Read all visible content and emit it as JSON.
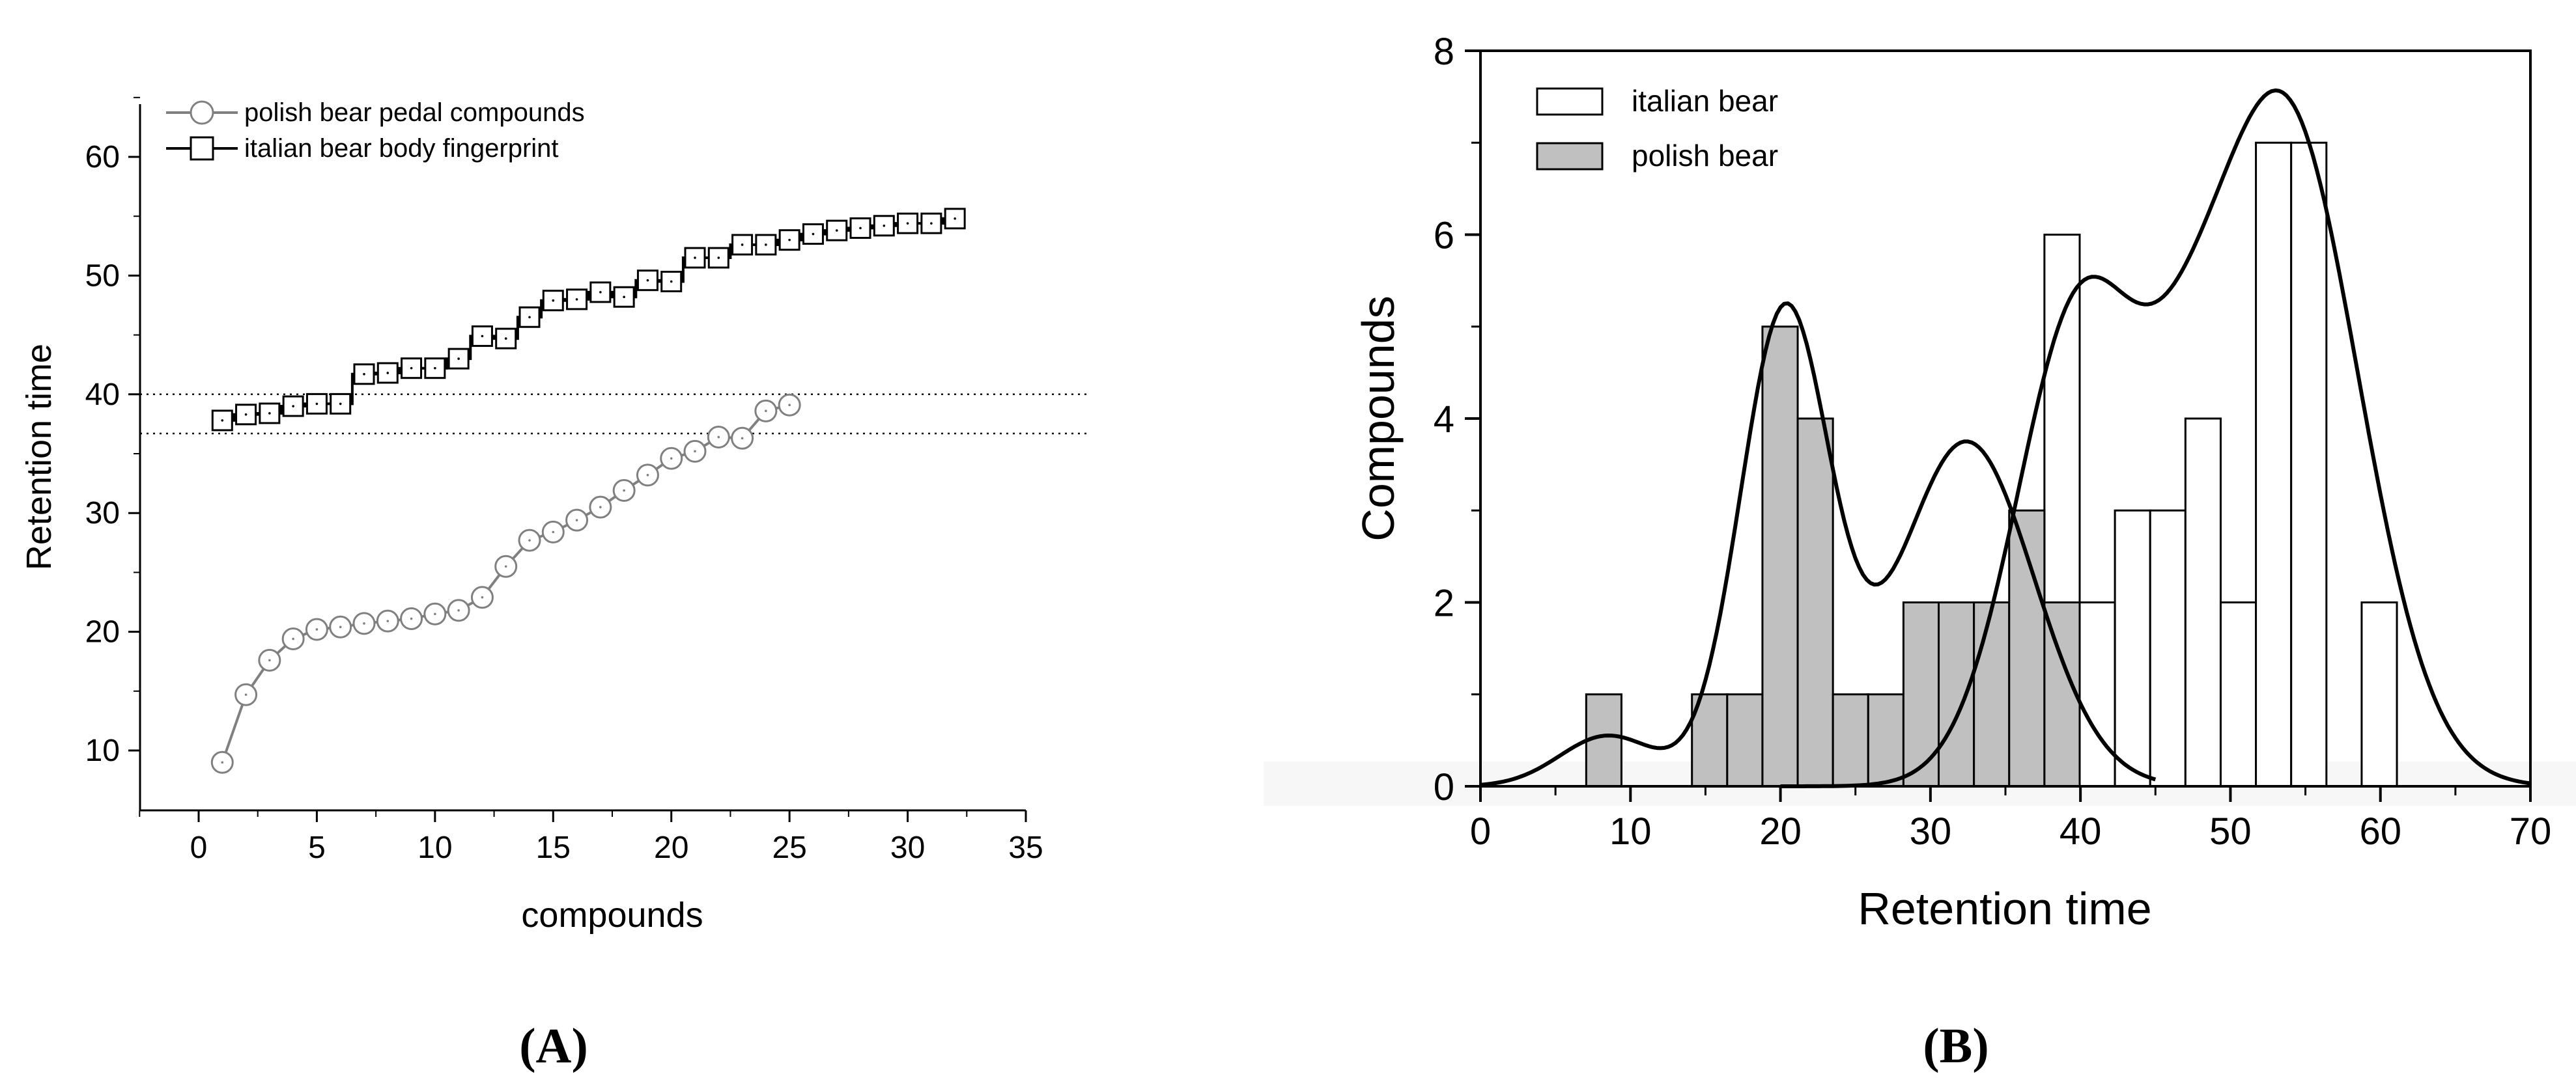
{
  "colors": {
    "background": "#ffffff",
    "polish_series_stroke": "#808080",
    "italian_series_stroke": "#000000",
    "polish_bar_fill": "#c0c0c0",
    "italian_bar_fill": "#ffffff",
    "axis": "#000000",
    "reference_line": "#000000"
  },
  "panel_labels": {
    "a": "A",
    "b": "B"
  },
  "chart_data": [
    {
      "id": "A",
      "type": "line",
      "title": "",
      "xlabel": "compounds",
      "ylabel": "Retention time",
      "xlim": [
        -2.5,
        35
      ],
      "ylim": [
        5,
        65
      ],
      "xticks": [
        0,
        5,
        10,
        15,
        20,
        25,
        30,
        35
      ],
      "yticks": [
        10,
        20,
        30,
        40,
        50,
        60
      ],
      "grid": false,
      "legend": "top-left",
      "reference_lines": [
        40.0,
        36.7
      ],
      "series": [
        {
          "name": "polish bear pedal compounds",
          "marker": "circle",
          "step": false,
          "x": [
            1,
            2,
            3,
            4,
            5,
            6,
            7,
            8,
            9,
            10,
            11,
            12,
            13,
            14,
            15,
            16,
            17,
            18,
            19,
            20,
            21,
            22,
            23,
            24,
            25
          ],
          "y": [
            9.0,
            14.7,
            17.6,
            19.4,
            20.2,
            20.4,
            20.7,
            20.9,
            21.1,
            21.5,
            21.8,
            22.9,
            25.5,
            27.7,
            28.4,
            29.4,
            30.5,
            31.9,
            33.2,
            34.6,
            35.2,
            36.4,
            36.3,
            38.6,
            39.1
          ]
        },
        {
          "name": "italian bear body fingerprint",
          "marker": "square",
          "step": true,
          "x": [
            1,
            2,
            3,
            4,
            5,
            6,
            7,
            8,
            9,
            10,
            11,
            12,
            13,
            14,
            15,
            16,
            17,
            18,
            19,
            20,
            21,
            22,
            23,
            24,
            25,
            26,
            27,
            28,
            29,
            30,
            31,
            32
          ],
          "y": [
            37.8,
            38.3,
            38.4,
            39.0,
            39.2,
            39.2,
            41.7,
            41.8,
            42.2,
            42.2,
            43.0,
            44.9,
            44.7,
            46.5,
            47.9,
            48.0,
            48.6,
            48.2,
            49.6,
            49.5,
            51.5,
            51.5,
            52.6,
            52.6,
            53.0,
            53.5,
            53.8,
            54.0,
            54.2,
            54.4,
            54.4,
            54.8
          ]
        }
      ]
    },
    {
      "id": "B",
      "type": "bar",
      "title": "",
      "xlabel": "Retention time",
      "ylabel": "Compounds",
      "xlim": [
        0,
        70
      ],
      "ylim": [
        0,
        8
      ],
      "xticks": [
        0,
        10,
        20,
        30,
        40,
        50,
        60,
        70
      ],
      "yticks": [
        0,
        2,
        4,
        6,
        8
      ],
      "grid": false,
      "legend": "top-left",
      "bin_width": 2.35,
      "series": [
        {
          "name": "italian bear",
          "bin_starts": [
            37.6,
            39.95,
            42.3,
            44.65,
            47.0,
            49.35,
            51.7,
            54.05,
            58.75
          ],
          "values": [
            6,
            2,
            3,
            3,
            4,
            2,
            7,
            7,
            2
          ],
          "kde": {
            "peaks": [
              [
                41.5,
                5.15
              ],
              [
                53.5,
                7.42
              ]
            ]
          }
        },
        {
          "name": "polish bear",
          "bin_starts": [
            7.05,
            14.1,
            16.45,
            18.8,
            21.15,
            23.5,
            25.85,
            28.2,
            30.55,
            32.9,
            35.25,
            37.6
          ],
          "values": [
            1,
            1,
            1,
            5,
            4,
            1,
            1,
            2,
            2,
            2,
            3,
            2
          ],
          "kde": {
            "peaks": [
              [
                20.3,
                5.3
              ],
              [
                32.5,
                3.88
              ]
            ]
          }
        }
      ]
    }
  ]
}
